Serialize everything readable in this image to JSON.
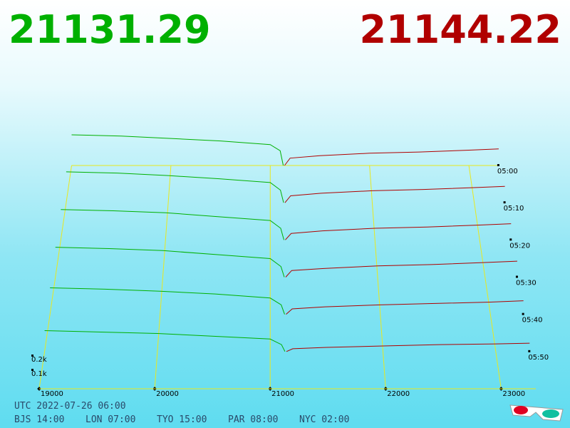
{
  "chart_data": {
    "type": "depth3d",
    "bid_price": 21131.29,
    "ask_price": 21144.22,
    "bid_color": "#00b000",
    "ask_color": "#b00000",
    "grid_color": "#e8e820",
    "xlim": [
      19000,
      23300
    ],
    "xticks": [
      19000,
      20000,
      21000,
      22000,
      23000
    ],
    "depth_ticks": [
      {
        "value": 100,
        "label": "0.1k"
      },
      {
        "value": 200,
        "label": "0.2k"
      }
    ],
    "time_ticks": [
      "05:00",
      "05:10",
      "05:20",
      "05:30",
      "05:40",
      "05:50"
    ],
    "bid_prices": [
      21131,
      21100,
      21000,
      20500,
      20000,
      19500,
      19000
    ],
    "ask_prices": [
      21144,
      21200,
      21500,
      22000,
      22500,
      23000,
      23300
    ],
    "snapshots": [
      {
        "bids": [
          0,
          120,
          170,
          200,
          220,
          240,
          250
        ],
        "asks": [
          0,
          60,
          80,
          100,
          110,
          125,
          135
        ]
      },
      {
        "bids": [
          0,
          100,
          160,
          190,
          215,
          235,
          245
        ],
        "asks": [
          0,
          55,
          75,
          95,
          105,
          120,
          130
        ]
      },
      {
        "bids": [
          0,
          90,
          150,
          180,
          210,
          225,
          235
        ],
        "asks": [
          0,
          50,
          70,
          90,
          100,
          115,
          125
        ]
      },
      {
        "bids": [
          0,
          80,
          140,
          170,
          200,
          215,
          225
        ],
        "asks": [
          0,
          50,
          65,
          85,
          95,
          110,
          120
        ]
      },
      {
        "bids": [
          0,
          70,
          120,
          150,
          170,
          185,
          195
        ],
        "asks": [
          0,
          40,
          55,
          70,
          80,
          90,
          100
        ]
      },
      {
        "bids": [
          0,
          50,
          90,
          110,
          130,
          140,
          150
        ],
        "asks": [
          0,
          20,
          30,
          40,
          50,
          55,
          60
        ]
      }
    ]
  },
  "footer": {
    "utc": "UTC 2022-07-26 06:00",
    "zones": [
      "BJS 14:00",
      "LON 07:00",
      "TYO 15:00",
      "PAR 08:00",
      "NYC 02:00"
    ]
  }
}
